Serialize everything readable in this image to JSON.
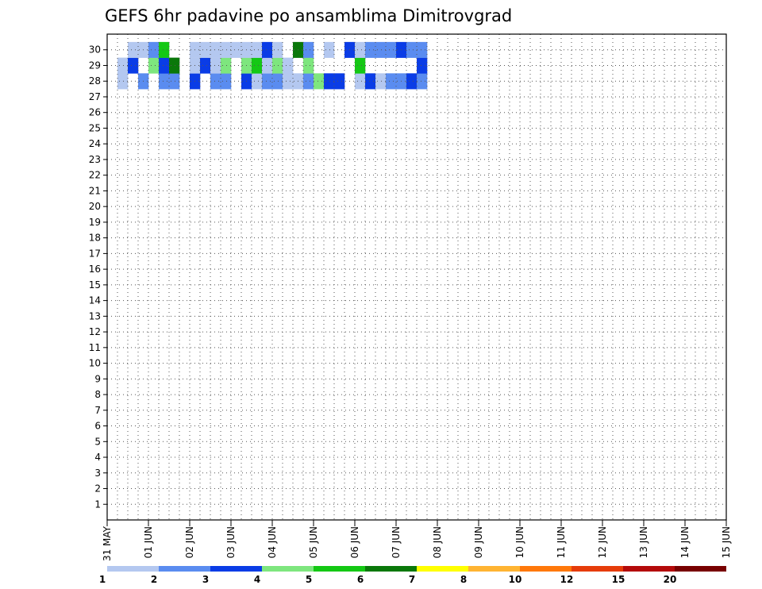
{
  "chart_data": {
    "type": "heatmap",
    "title": "GEFS 6hr padavine po ansamblima Dimitrovgrad",
    "xlabel": "",
    "ylabel": "",
    "y_range": [
      0,
      31
    ],
    "y_ticks": [
      "1",
      "2",
      "3",
      "4",
      "5",
      "6",
      "7",
      "8",
      "9",
      "10",
      "11",
      "12",
      "13",
      "14",
      "15",
      "16",
      "17",
      "18",
      "19",
      "20",
      "21",
      "22",
      "23",
      "24",
      "25",
      "26",
      "27",
      "28",
      "29",
      "30"
    ],
    "x_tick_labels": [
      "31 MAY",
      "01 JUN",
      "02 JUN",
      "03 JUN",
      "04 JUN",
      "05 JUN",
      "06 JUN",
      "07 JUN",
      "08 JUN",
      "09 JUN",
      "10 JUN",
      "11 JUN",
      "12 JUN",
      "13 JUN",
      "14 JUN",
      "15 JUN"
    ],
    "grid": true,
    "legend": {
      "placement": "bottom",
      "levels": [
        "1",
        "2",
        "3",
        "4",
        "5",
        "6",
        "7",
        "8",
        "10",
        "12",
        "15",
        "20"
      ],
      "colors": [
        "#b4c8f0",
        "#5a8cf0",
        "#0a3ce6",
        "#7ee67e",
        "#14c814",
        "#0a780a",
        "#ffff00",
        "#ffb432",
        "#ff780a",
        "#e63c0a",
        "#b40a0a",
        "#780000"
      ]
    },
    "cells": [
      [
        28,
        1,
        1
      ],
      [
        28,
        3,
        2
      ],
      [
        28,
        5,
        2
      ],
      [
        28,
        6,
        2
      ],
      [
        28,
        8,
        3
      ],
      [
        28,
        10,
        2
      ],
      [
        28,
        11,
        2
      ],
      [
        28,
        13,
        3
      ],
      [
        28,
        14,
        1
      ],
      [
        28,
        15,
        2
      ],
      [
        28,
        16,
        2
      ],
      [
        28,
        17,
        1
      ],
      [
        28,
        18,
        1
      ],
      [
        28,
        19,
        2
      ],
      [
        28,
        20,
        4
      ],
      [
        28,
        21,
        3
      ],
      [
        28,
        22,
        3
      ],
      [
        28,
        24,
        1
      ],
      [
        28,
        25,
        3
      ],
      [
        28,
        26,
        1
      ],
      [
        28,
        27,
        2
      ],
      [
        28,
        28,
        2
      ],
      [
        28,
        29,
        3
      ],
      [
        28,
        30,
        2
      ],
      [
        29,
        1,
        1
      ],
      [
        29,
        2,
        3
      ],
      [
        29,
        4,
        4
      ],
      [
        29,
        5,
        3
      ],
      [
        29,
        6,
        6
      ],
      [
        29,
        8,
        1
      ],
      [
        29,
        9,
        3
      ],
      [
        29,
        10,
        1
      ],
      [
        29,
        11,
        4
      ],
      [
        29,
        13,
        4
      ],
      [
        29,
        14,
        5
      ],
      [
        29,
        15,
        1
      ],
      [
        29,
        16,
        4
      ],
      [
        29,
        17,
        1
      ],
      [
        29,
        19,
        4
      ],
      [
        29,
        24,
        5
      ],
      [
        29,
        30,
        3
      ],
      [
        30,
        2,
        1
      ],
      [
        30,
        3,
        1
      ],
      [
        30,
        4,
        2
      ],
      [
        30,
        5,
        5
      ],
      [
        30,
        8,
        1
      ],
      [
        30,
        9,
        1
      ],
      [
        30,
        10,
        1
      ],
      [
        30,
        11,
        1
      ],
      [
        30,
        12,
        1
      ],
      [
        30,
        13,
        1
      ],
      [
        30,
        14,
        1
      ],
      [
        30,
        15,
        3
      ],
      [
        30,
        16,
        1
      ],
      [
        30,
        18,
        6
      ],
      [
        30,
        19,
        2
      ],
      [
        30,
        21,
        1
      ],
      [
        30,
        23,
        3
      ],
      [
        30,
        24,
        1
      ],
      [
        30,
        25,
        2
      ],
      [
        30,
        26,
        2
      ],
      [
        30,
        27,
        2
      ],
      [
        30,
        28,
        3
      ],
      [
        30,
        29,
        2
      ],
      [
        30,
        30,
        2
      ]
    ]
  }
}
